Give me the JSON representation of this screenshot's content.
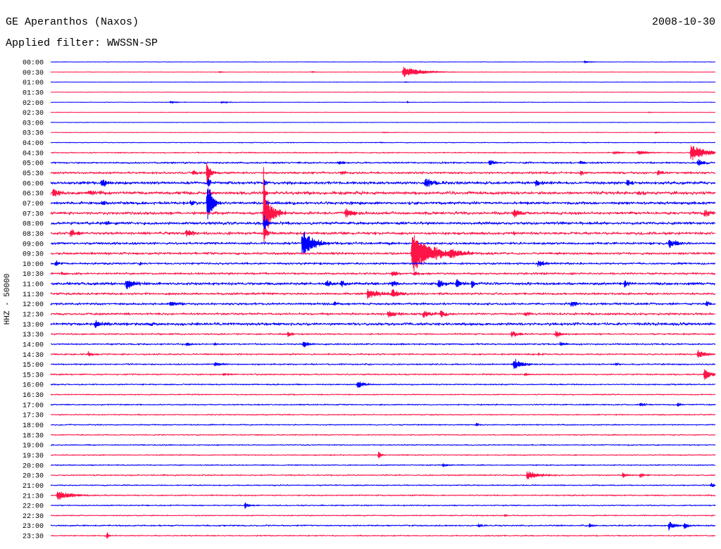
{
  "chart_data": {
    "type": "line",
    "title": "GE Aperanthos (Naxos)",
    "subtitle": "Applied filter: WWSSN-SP",
    "date": "2008-10-30",
    "ylabel": "HHZ - 50000",
    "xlim": [
      0,
      30
    ],
    "colors": [
      "#0000ff",
      "#ff1448"
    ],
    "rows": [
      {
        "label": "00:00",
        "noise": 0.03,
        "events": [
          {
            "t": 24.1,
            "amp": 0.12,
            "dur": 0.6
          }
        ]
      },
      {
        "label": "00:30",
        "noise": 0.03,
        "events": [
          {
            "t": 7.6,
            "amp": 0.08,
            "dur": 0.3
          },
          {
            "t": 11.8,
            "amp": 0.08,
            "dur": 0.3
          },
          {
            "t": 15.9,
            "amp": 0.55,
            "dur": 1.6
          }
        ]
      },
      {
        "label": "01:00",
        "noise": 0.03,
        "events": [
          {
            "t": 16.0,
            "amp": 0.06,
            "dur": 0.3
          }
        ]
      },
      {
        "label": "01:30",
        "noise": 0.03,
        "events": []
      },
      {
        "label": "02:00",
        "noise": 0.035,
        "events": [
          {
            "t": 5.4,
            "amp": 0.12,
            "dur": 0.7
          },
          {
            "t": 7.7,
            "amp": 0.1,
            "dur": 0.8
          },
          {
            "t": 16.1,
            "amp": 0.12,
            "dur": 0.1
          }
        ]
      },
      {
        "label": "02:30",
        "noise": 0.03,
        "events": [
          {
            "t": 27.0,
            "amp": 0.06,
            "dur": 0.4
          }
        ]
      },
      {
        "label": "03:00",
        "noise": 0.03,
        "events": []
      },
      {
        "label": "03:30",
        "noise": 0.035,
        "events": [
          {
            "t": 15.0,
            "amp": 0.07,
            "dur": 0.3
          },
          {
            "t": 27.3,
            "amp": 0.07,
            "dur": 0.4
          }
        ]
      },
      {
        "label": "04:00",
        "noise": 0.045,
        "events": [
          {
            "t": 14.9,
            "amp": 0.06,
            "dur": 0.3
          },
          {
            "t": 24.0,
            "amp": 0.05,
            "dur": 0.3
          }
        ]
      },
      {
        "label": "04:30",
        "noise": 0.07,
        "events": [
          {
            "t": 25.4,
            "amp": 0.12,
            "dur": 1.2
          },
          {
            "t": 26.5,
            "amp": 0.22,
            "dur": 0.8
          },
          {
            "t": 28.9,
            "amp": 0.9,
            "dur": 1.2
          }
        ]
      },
      {
        "label": "05:00",
        "noise": 0.11,
        "events": [
          {
            "t": 13.0,
            "amp": 0.15,
            "dur": 0.6
          },
          {
            "t": 19.8,
            "amp": 0.3,
            "dur": 0.5
          },
          {
            "t": 23.9,
            "amp": 0.2,
            "dur": 0.4
          },
          {
            "t": 29.2,
            "amp": 0.4,
            "dur": 0.6
          }
        ]
      },
      {
        "label": "05:30",
        "noise": 0.14,
        "events": [
          {
            "t": 6.4,
            "amp": 0.25,
            "dur": 0.5
          },
          {
            "t": 7.05,
            "amp": 1.3,
            "dur": 0.3
          },
          {
            "t": 13.1,
            "amp": 0.2,
            "dur": 0.6
          },
          {
            "t": 23.9,
            "amp": 0.2,
            "dur": 0.4
          },
          {
            "t": 27.4,
            "amp": 0.25,
            "dur": 0.4
          }
        ]
      },
      {
        "label": "06:00",
        "noise": 0.18,
        "events": [
          {
            "t": 2.3,
            "amp": 0.45,
            "dur": 0.6
          },
          {
            "t": 7.1,
            "amp": 0.6,
            "dur": 0.2
          },
          {
            "t": 9.65,
            "amp": 0.5,
            "dur": 0.15
          },
          {
            "t": 16.9,
            "amp": 0.55,
            "dur": 0.8
          },
          {
            "t": 21.9,
            "amp": 0.35,
            "dur": 0.6
          },
          {
            "t": 26.0,
            "amp": 0.35,
            "dur": 0.5
          }
        ]
      },
      {
        "label": "06:30",
        "noise": 0.2,
        "events": [
          {
            "t": 0.1,
            "amp": 0.45,
            "dur": 0.8
          },
          {
            "t": 1.7,
            "amp": 0.25,
            "dur": 0.7
          },
          {
            "t": 7.1,
            "amp": 0.5,
            "dur": 0.2
          },
          {
            "t": 9.65,
            "amp": 0.6,
            "dur": 0.15
          },
          {
            "t": 26.5,
            "amp": 0.25,
            "dur": 0.4
          }
        ]
      },
      {
        "label": "07:00",
        "noise": 0.18,
        "events": [
          {
            "t": 2.3,
            "amp": 0.2,
            "dur": 0.5
          },
          {
            "t": 6.3,
            "amp": 0.3,
            "dur": 0.5
          },
          {
            "t": 7.07,
            "amp": 3.2,
            "dur": 0.35
          },
          {
            "t": 9.65,
            "amp": 0.8,
            "dur": 0.2
          }
        ]
      },
      {
        "label": "07:30",
        "noise": 0.18,
        "events": [
          {
            "t": 9.62,
            "amp": 5.6,
            "dur": 0.15
          },
          {
            "t": 9.8,
            "amp": 1.4,
            "dur": 0.7
          },
          {
            "t": 13.3,
            "amp": 0.45,
            "dur": 0.8
          },
          {
            "t": 20.9,
            "amp": 0.45,
            "dur": 0.7
          },
          {
            "t": 29.5,
            "amp": 0.4,
            "dur": 0.5
          }
        ]
      },
      {
        "label": "08:00",
        "noise": 0.17,
        "events": [
          {
            "t": 2.5,
            "amp": 0.2,
            "dur": 0.5
          },
          {
            "t": 9.63,
            "amp": 0.8,
            "dur": 0.3
          }
        ]
      },
      {
        "label": "08:30",
        "noise": 0.17,
        "events": [
          {
            "t": 0.9,
            "amp": 0.45,
            "dur": 0.5
          },
          {
            "t": 6.1,
            "amp": 0.45,
            "dur": 0.6
          },
          {
            "t": 9.63,
            "amp": 0.9,
            "dur": 0.3
          },
          {
            "t": 20.9,
            "amp": 0.2,
            "dur": 0.5
          }
        ]
      },
      {
        "label": "09:00",
        "noise": 0.15,
        "events": [
          {
            "t": 11.35,
            "amp": 1.5,
            "dur": 1.0
          },
          {
            "t": 15.2,
            "amp": 0.2,
            "dur": 0.4
          },
          {
            "t": 27.9,
            "amp": 0.45,
            "dur": 0.8
          }
        ]
      },
      {
        "label": "09:30",
        "noise": 0.15,
        "events": [
          {
            "t": 16.3,
            "amp": 2.1,
            "dur": 1.8
          },
          {
            "t": 18.0,
            "amp": 0.3,
            "dur": 1.0
          }
        ]
      },
      {
        "label": "10:00",
        "noise": 0.13,
        "events": [
          {
            "t": 0.2,
            "amp": 0.25,
            "dur": 0.4
          },
          {
            "t": 4.0,
            "amp": 0.15,
            "dur": 0.4
          },
          {
            "t": 22.0,
            "amp": 0.3,
            "dur": 0.8
          }
        ]
      },
      {
        "label": "10:30",
        "noise": 0.13,
        "events": [
          {
            "t": 0.5,
            "amp": 0.15,
            "dur": 0.4
          },
          {
            "t": 15.4,
            "amp": 0.3,
            "dur": 0.5
          },
          {
            "t": 16.4,
            "amp": 0.25,
            "dur": 0.5
          }
        ]
      },
      {
        "label": "11:00",
        "noise": 0.17,
        "events": [
          {
            "t": 3.4,
            "amp": 0.55,
            "dur": 0.9
          },
          {
            "t": 12.4,
            "amp": 0.35,
            "dur": 0.6
          },
          {
            "t": 13.1,
            "amp": 0.3,
            "dur": 0.6
          },
          {
            "t": 15.4,
            "amp": 0.35,
            "dur": 0.4
          },
          {
            "t": 17.5,
            "amp": 0.45,
            "dur": 0.6
          },
          {
            "t": 18.3,
            "amp": 0.45,
            "dur": 0.5
          },
          {
            "t": 19.0,
            "amp": 0.4,
            "dur": 0.3
          },
          {
            "t": 25.9,
            "amp": 0.4,
            "dur": 0.4
          }
        ]
      },
      {
        "label": "11:30",
        "noise": 0.14,
        "events": [
          {
            "t": 14.3,
            "amp": 0.45,
            "dur": 1.2
          },
          {
            "t": 15.4,
            "amp": 0.5,
            "dur": 0.6
          }
        ]
      },
      {
        "label": "12:00",
        "noise": 0.14,
        "events": [
          {
            "t": 5.4,
            "amp": 0.25,
            "dur": 0.8
          },
          {
            "t": 12.8,
            "amp": 0.2,
            "dur": 0.3
          },
          {
            "t": 23.5,
            "amp": 0.35,
            "dur": 0.4
          },
          {
            "t": 29.6,
            "amp": 0.25,
            "dur": 0.4
          }
        ]
      },
      {
        "label": "12:30",
        "noise": 0.14,
        "events": [
          {
            "t": 15.2,
            "amp": 0.3,
            "dur": 1.0
          },
          {
            "t": 16.8,
            "amp": 0.35,
            "dur": 0.8
          },
          {
            "t": 17.6,
            "amp": 0.4,
            "dur": 0.4
          },
          {
            "t": 21.4,
            "amp": 0.3,
            "dur": 0.4
          }
        ]
      },
      {
        "label": "13:00",
        "noise": 0.18,
        "events": [
          {
            "t": 2.0,
            "amp": 0.35,
            "dur": 0.8
          },
          {
            "t": 4.5,
            "amp": 0.2,
            "dur": 0.3
          }
        ]
      },
      {
        "label": "13:30",
        "noise": 0.1,
        "events": [
          {
            "t": 10.7,
            "amp": 0.3,
            "dur": 0.4
          },
          {
            "t": 20.8,
            "amp": 0.35,
            "dur": 0.6
          },
          {
            "t": 22.8,
            "amp": 0.35,
            "dur": 0.5
          }
        ]
      },
      {
        "label": "14:00",
        "noise": 0.1,
        "events": [
          {
            "t": 6.1,
            "amp": 0.22,
            "dur": 0.5
          },
          {
            "t": 7.4,
            "amp": 0.2,
            "dur": 0.3
          },
          {
            "t": 11.4,
            "amp": 0.35,
            "dur": 0.5
          },
          {
            "t": 23.0,
            "amp": 0.22,
            "dur": 0.4
          }
        ]
      },
      {
        "label": "14:30",
        "noise": 0.1,
        "events": [
          {
            "t": 1.7,
            "amp": 0.25,
            "dur": 0.4
          },
          {
            "t": 22.0,
            "amp": 0.15,
            "dur": 0.3
          },
          {
            "t": 29.2,
            "amp": 0.45,
            "dur": 0.7
          }
        ]
      },
      {
        "label": "15:00",
        "noise": 0.09,
        "events": [
          {
            "t": 7.4,
            "amp": 0.2,
            "dur": 0.7
          },
          {
            "t": 20.9,
            "amp": 0.6,
            "dur": 0.7
          },
          {
            "t": 25.5,
            "amp": 0.15,
            "dur": 0.4
          }
        ]
      },
      {
        "label": "15:30",
        "noise": 0.09,
        "events": [
          {
            "t": 7.8,
            "amp": 0.12,
            "dur": 0.8
          },
          {
            "t": 21.4,
            "amp": 0.2,
            "dur": 0.4
          },
          {
            "t": 29.5,
            "amp": 0.6,
            "dur": 0.6
          }
        ]
      },
      {
        "label": "16:00",
        "noise": 0.08,
        "events": [
          {
            "t": 13.85,
            "amp": 0.4,
            "dur": 0.6
          }
        ]
      },
      {
        "label": "16:30",
        "noise": 0.07,
        "events": []
      },
      {
        "label": "17:00",
        "noise": 0.08,
        "events": [
          {
            "t": 26.6,
            "amp": 0.18,
            "dur": 0.5
          },
          {
            "t": 28.3,
            "amp": 0.2,
            "dur": 0.3
          }
        ]
      },
      {
        "label": "17:30",
        "noise": 0.07,
        "events": []
      },
      {
        "label": "18:00",
        "noise": 0.07,
        "events": [
          {
            "t": 19.2,
            "amp": 0.2,
            "dur": 0.3
          }
        ]
      },
      {
        "label": "18:30",
        "noise": 0.07,
        "events": []
      },
      {
        "label": "19:00",
        "noise": 0.07,
        "events": []
      },
      {
        "label": "19:30",
        "noise": 0.07,
        "events": [
          {
            "t": 14.8,
            "amp": 0.55,
            "dur": 0.2
          }
        ]
      },
      {
        "label": "20:00",
        "noise": 0.07,
        "events": [
          {
            "t": 17.7,
            "amp": 0.18,
            "dur": 0.4
          }
        ]
      },
      {
        "label": "20:30",
        "noise": 0.08,
        "events": [
          {
            "t": 21.5,
            "amp": 0.45,
            "dur": 1.0
          },
          {
            "t": 25.8,
            "amp": 0.25,
            "dur": 0.5
          },
          {
            "t": 26.6,
            "amp": 0.22,
            "dur": 0.4
          }
        ]
      },
      {
        "label": "21:00",
        "noise": 0.07,
        "events": [
          {
            "t": 29.8,
            "amp": 0.25,
            "dur": 0.3
          }
        ]
      },
      {
        "label": "21:30",
        "noise": 0.08,
        "events": [
          {
            "t": 0.3,
            "amp": 0.5,
            "dur": 1.2
          }
        ]
      },
      {
        "label": "22:00",
        "noise": 0.07,
        "events": [
          {
            "t": 8.77,
            "amp": 0.3,
            "dur": 0.4
          }
        ]
      },
      {
        "label": "22:30",
        "noise": 0.07,
        "events": [
          {
            "t": 20.5,
            "amp": 0.12,
            "dur": 0.3
          }
        ]
      },
      {
        "label": "23:00",
        "noise": 0.09,
        "events": [
          {
            "t": 19.3,
            "amp": 0.2,
            "dur": 0.4
          },
          {
            "t": 24.3,
            "amp": 0.25,
            "dur": 0.3
          },
          {
            "t": 27.9,
            "amp": 0.45,
            "dur": 0.6
          },
          {
            "t": 28.6,
            "amp": 0.3,
            "dur": 0.3
          }
        ]
      },
      {
        "label": "23:30",
        "noise": 0.07,
        "events": [
          {
            "t": 2.54,
            "amp": 0.45,
            "dur": 0.15
          }
        ]
      }
    ]
  }
}
